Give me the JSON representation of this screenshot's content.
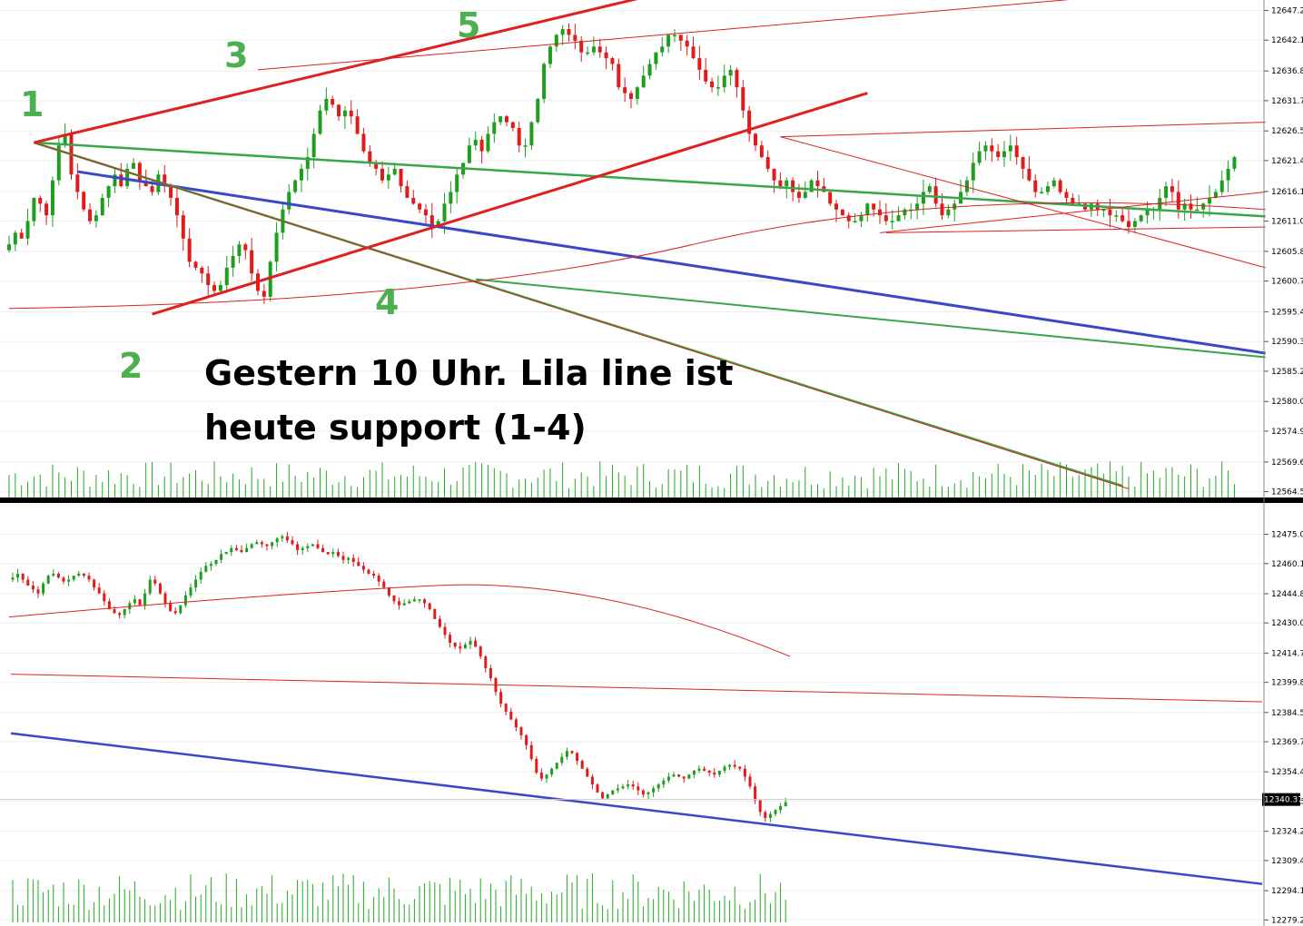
{
  "colors": {
    "bull": "#1e9e1e",
    "bear": "#e01b1b",
    "volume": "#22aa22",
    "blue_line": "#3a48c8",
    "green_line": "#3aa64a",
    "red_line": "#e02020",
    "thin_red": "#dd2020",
    "separator": "#000000",
    "wave_label": "#4caf50"
  },
  "annotation": {
    "line1": "Gestern 10 Uhr. Lila line ist",
    "line2": "heute support (1-4)"
  },
  "chart_data": [
    {
      "type": "candlestick",
      "panel": "top",
      "title": "",
      "ylim": [
        12563.5,
        12649.0
      ],
      "y_ticks": [
        "12647.2",
        "12642.1",
        "12636.8",
        "12631.7",
        "12626.5",
        "12621.4",
        "12616.1",
        "12611.0",
        "12605.8",
        "12600.7",
        "12595.4",
        "12590.3",
        "12585.2",
        "12580.0",
        "12574.9",
        "12569.6",
        "12564.5"
      ],
      "wave_labels": [
        "1",
        "2",
        "3",
        "4",
        "5"
      ],
      "closes": [
        12607,
        12609,
        12608,
        12611,
        12615,
        12614,
        12612,
        12618,
        12624,
        12626,
        12619,
        12616,
        12613,
        12611,
        12612,
        12615,
        12617,
        12619,
        12617,
        12620,
        12621,
        12618,
        12617,
        12616,
        12619,
        12617,
        12615,
        12612,
        12608,
        12604,
        12603,
        12602,
        12600,
        12599,
        12600,
        12603,
        12605,
        12607,
        12606,
        12602,
        12599,
        12598,
        12604,
        12609,
        12613,
        12616,
        12618,
        12620,
        12622,
        12626,
        12630,
        12632,
        12631,
        12629,
        12630,
        12629,
        12626,
        12623,
        12621,
        12620,
        12618,
        12619,
        12620,
        12617,
        12615,
        12614,
        12613,
        12612,
        12610,
        12611,
        12614,
        12616,
        12619,
        12621,
        12624,
        12625,
        12623,
        12626,
        12628,
        12629,
        12628,
        12627,
        12624,
        12624,
        12628,
        12632,
        12638,
        12641,
        12643,
        12644,
        12643,
        12642,
        12640,
        12640,
        12641,
        12640,
        12639,
        12638,
        12634,
        12633,
        12632,
        12634,
        12636,
        12638,
        12640,
        12641,
        12643,
        12643,
        12642,
        12641,
        12639,
        12637,
        12635,
        12634,
        12634,
        12636,
        12637,
        12634,
        12630,
        12626,
        12624,
        12622,
        12620,
        12618,
        12617,
        12618,
        12616,
        12615,
        12616,
        12618,
        12617,
        12616,
        12614,
        12613,
        12612,
        12611,
        12611,
        12612,
        12614,
        12613,
        12612,
        12611,
        12611,
        12612,
        12613,
        12613,
        12614,
        12616,
        12617,
        12614,
        12612,
        12613,
        12614,
        12616,
        12618,
        12621,
        12623,
        12624,
        12623,
        12622,
        12623,
        12624,
        12622,
        12620,
        12618,
        12616,
        12616,
        12617,
        12618,
        12616,
        12615,
        12614,
        12614,
        12613,
        12614,
        12613,
        12613,
        12612,
        12612,
        12611,
        12610,
        12611,
        12612,
        12613,
        12613,
        12615,
        12617,
        12616,
        12613,
        12614,
        12613,
        12613,
        12614,
        12615,
        12616,
        12618,
        12620,
        12622
      ]
    },
    {
      "type": "candlestick",
      "panel": "bottom",
      "title": "",
      "ylim": [
        12278.0,
        12490.0
      ],
      "y_ticks": [
        "12475.00",
        "12460.15",
        "12444.85",
        "12430.00",
        "12414.70",
        "12399.85",
        "12384.55",
        "12369.70",
        "12354.40",
        "12339.55",
        "12324.25",
        "12309.40",
        "12294.10",
        "12279.25"
      ],
      "current_price": "12340.37",
      "closes": [
        12453,
        12455,
        12452,
        12449,
        12447,
        12445,
        12450,
        12454,
        12455,
        12453,
        12451,
        12452,
        12454,
        12455,
        12454,
        12452,
        12448,
        12445,
        12441,
        12437,
        12435,
        12434,
        12437,
        12440,
        12442,
        12439,
        12445,
        12452,
        12450,
        12445,
        12440,
        12436,
        12435,
        12439,
        12444,
        12448,
        12452,
        12456,
        12459,
        12460,
        12462,
        12465,
        12466,
        12468,
        12467,
        12466,
        12468,
        12470,
        12471,
        12470,
        12469,
        12471,
        12473,
        12474,
        12472,
        12470,
        12467,
        12468,
        12469,
        12470,
        12468,
        12466,
        12465,
        12466,
        12464,
        12462,
        12463,
        12461,
        12459,
        12457,
        12455,
        12454,
        12451,
        12448,
        12444,
        12441,
        12439,
        12440,
        12441,
        12442,
        12442,
        12440,
        12437,
        12432,
        12428,
        12424,
        12420,
        12418,
        12417,
        12419,
        12421,
        12418,
        12413,
        12407,
        12402,
        12395,
        12389,
        12385,
        12381,
        12377,
        12373,
        12368,
        12361,
        12354,
        12351,
        12353,
        12356,
        12359,
        12362,
        12365,
        12364,
        12360,
        12356,
        12352,
        12348,
        12344,
        12341,
        12343,
        12345,
        12346,
        12347,
        12348,
        12347,
        12345,
        12343,
        12344,
        12346,
        12348,
        12350,
        12352,
        12353,
        12352,
        12351,
        12353,
        12355,
        12356,
        12355,
        12354,
        12353,
        12355,
        12357,
        12358,
        12357,
        12356,
        12352,
        12347,
        12340,
        12334,
        12331,
        12333,
        12335,
        12337,
        12339
      ]
    }
  ]
}
